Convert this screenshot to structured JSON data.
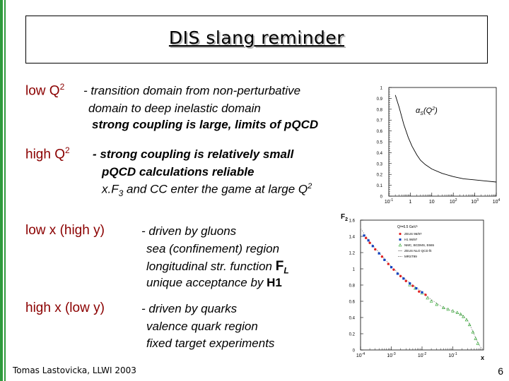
{
  "slide": {
    "title": "DIS slang reminder",
    "footer": "Tomas Lastovicka, LLWI 2003",
    "page_number": "6"
  },
  "low_q2": {
    "head": "low Q",
    "sup": "2",
    "line1": "- transition domain from non-perturbative",
    "line2": "domain to deep inelastic domain",
    "line3": "strong coupling is large, limits of pQCD"
  },
  "high_q2": {
    "head": "high Q",
    "sup": "2",
    "line1": "- strong coupling is relatively small",
    "line2": "pQCD calculations reliable",
    "line3a": "x.F",
    "line3b": "3",
    "line3c": " and CC enter the game at large Q",
    "line3d": "2"
  },
  "low_x": {
    "head": "low x (high y)",
    "line1": "- driven by gluons",
    "line2": "sea (confinement) region",
    "line3": "longitudinal str. function",
    "line3_f": "F",
    "line3_sub": "L",
    "line4": "unique acceptance by",
    "line4_b": "H1"
  },
  "high_x": {
    "head": "high x (low y)",
    "line1": "- driven by quarks",
    "line2": "valence quark region",
    "line3": "fixed target experiments"
  },
  "chart_data": [
    {
      "type": "line",
      "annotation": "α_S(Q²)",
      "x_scale": "log",
      "xlim": [
        0.1,
        10000
      ],
      "ylim": [
        0,
        1
      ],
      "yticks": [
        "0",
        "0.1",
        "0.2",
        "0.3",
        "0.4",
        "0.5",
        "0.6",
        "0.7",
        "0.8",
        "0.9",
        "1"
      ],
      "xtick_bases": [
        "10",
        "1",
        "10",
        "10",
        "10",
        "10"
      ],
      "xtick_exps": [
        "-1",
        "",
        "",
        "2",
        "3",
        "4"
      ],
      "series": [
        {
          "x": [
            0.2,
            0.3,
            0.5,
            0.8,
            1.2,
            2,
            3,
            5,
            10,
            30,
            100,
            300,
            1000,
            3000,
            10000
          ],
          "values": [
            0.93,
            0.82,
            0.66,
            0.54,
            0.46,
            0.38,
            0.33,
            0.29,
            0.25,
            0.21,
            0.18,
            0.16,
            0.15,
            0.14,
            0.13
          ]
        }
      ],
      "grid": false
    },
    {
      "type": "scatter",
      "ylabel": "F",
      "ylabel_sub": "2",
      "xlabel": "x",
      "x_scale": "log",
      "xlim": [
        0.0001,
        1
      ],
      "ylim": [
        0,
        1.6
      ],
      "yticks": [
        "0",
        "0.2",
        "0.4",
        "0.6",
        "0.8",
        "1",
        "1.2",
        "1.4",
        "1.6"
      ],
      "xtick_bases": [
        "10",
        "10",
        "10",
        "10"
      ],
      "xtick_exps": [
        "-4",
        "-3",
        "-2",
        "-1"
      ],
      "legend_title": "Q²=6.5 GeV²",
      "legend": [
        {
          "name": "ZEUS 96/97",
          "color": "#e02020",
          "marker": "circle"
        },
        {
          "name": "H1 96/97",
          "color": "#1040c0",
          "marker": "square"
        },
        {
          "name": "NMC, BCDMS, E665",
          "color": "#20a020",
          "marker": "triangle"
        },
        {
          "name": "ZEUS NLO QCD fit",
          "color": "#909090",
          "marker": "line"
        },
        {
          "name": "MRST99",
          "color": "#606060",
          "marker": "dashed"
        }
      ],
      "series": [
        {
          "name": "ZEUS 96/97",
          "color": "#e02020",
          "x": [
            0.00015,
            0.0002,
            0.0003,
            0.0005,
            0.0008,
            0.0012,
            0.002,
            0.003,
            0.005,
            0.008,
            0.013
          ],
          "values": [
            1.38,
            1.32,
            1.24,
            1.15,
            1.06,
            0.99,
            0.91,
            0.85,
            0.79,
            0.72,
            0.68
          ]
        },
        {
          "name": "H1 96/97",
          "color": "#1040c0",
          "x": [
            0.00013,
            0.00018,
            0.00025,
            0.0004,
            0.0006,
            0.001,
            0.0016,
            0.0025,
            0.004,
            0.0065,
            0.01
          ],
          "values": [
            1.41,
            1.35,
            1.28,
            1.19,
            1.11,
            1.02,
            0.94,
            0.88,
            0.82,
            0.76,
            0.71
          ]
        },
        {
          "name": "NMC, BCDMS, E665",
          "color": "#20a020",
          "x": [
            0.004,
            0.006,
            0.01,
            0.015,
            0.02,
            0.03,
            0.05,
            0.07,
            0.1,
            0.14,
            0.18,
            0.22,
            0.28,
            0.35,
            0.45,
            0.55,
            0.65
          ],
          "values": [
            0.8,
            0.76,
            0.7,
            0.64,
            0.6,
            0.56,
            0.52,
            0.5,
            0.48,
            0.46,
            0.44,
            0.41,
            0.37,
            0.31,
            0.22,
            0.14,
            0.08
          ]
        },
        {
          "name": "fit",
          "color": "#808080",
          "style": "line",
          "x": [
            0.0001,
            0.0002,
            0.0005,
            0.001,
            0.002,
            0.005,
            0.01,
            0.02,
            0.05,
            0.1,
            0.2,
            0.3,
            0.45,
            0.6,
            0.75,
            0.9
          ],
          "values": [
            1.5,
            1.33,
            1.16,
            1.03,
            0.92,
            0.8,
            0.72,
            0.62,
            0.52,
            0.48,
            0.43,
            0.37,
            0.23,
            0.12,
            0.05,
            0.01
          ]
        }
      ],
      "grid": false
    }
  ]
}
